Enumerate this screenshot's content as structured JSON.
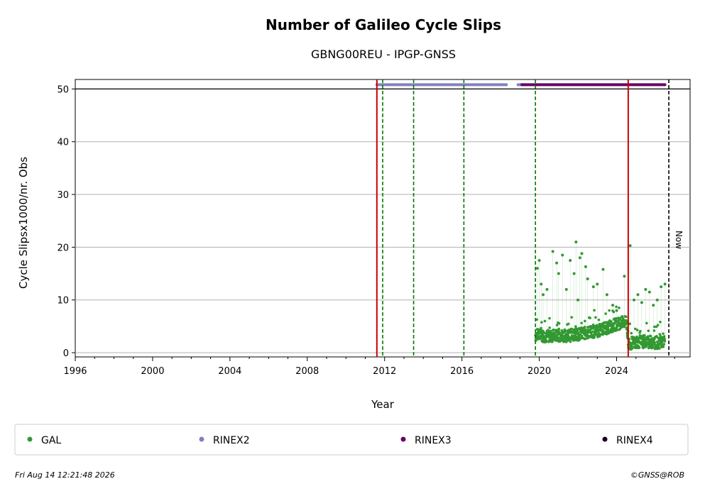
{
  "chart_data": {
    "type": "scatter",
    "title": "Number of Galileo Cycle Slips",
    "subtitle": "GBNG00REU - IPGP-GNSS",
    "xlabel": "Year",
    "ylabel": "Cycle Slipsx1000/nr. Obs",
    "xlim": [
      1996,
      2027.8
    ],
    "ylim": [
      -0.8,
      51.8
    ],
    "xticks": [
      1996,
      2000,
      2004,
      2008,
      2012,
      2016,
      2020,
      2024
    ],
    "yticks": [
      0,
      10,
      20,
      30,
      40,
      50
    ],
    "grid": "horizontal",
    "ceiling_line": 50,
    "events": {
      "red_solid": [
        2011.6,
        2024.6
      ],
      "green_dashed": [
        2011.9,
        2013.5,
        2016.1,
        2019.8
      ],
      "now_dashed": 2026.7,
      "now_label": "Now"
    },
    "file_availability": [
      {
        "name": "RINEX2",
        "color": "#8080c0",
        "y": 50.8,
        "ranges": [
          [
            2011.6,
            2018.3
          ],
          [
            2018.9,
            2019.2
          ]
        ]
      },
      {
        "name": "RINEX3",
        "color": "#660066",
        "y": 50.8,
        "ranges": [
          [
            2019.1,
            2026.5
          ]
        ]
      }
    ],
    "gal_trend": [
      [
        2019.8,
        3.2
      ],
      [
        2020.5,
        3.0
      ],
      [
        2021.0,
        3.2
      ],
      [
        2021.5,
        3.1
      ],
      [
        2022.0,
        3.4
      ],
      [
        2022.5,
        3.7
      ],
      [
        2023.0,
        4.0
      ],
      [
        2023.5,
        4.6
      ],
      [
        2024.0,
        5.3
      ],
      [
        2024.5,
        5.8
      ],
      [
        2024.62,
        1.6
      ],
      [
        2025.0,
        1.9
      ],
      [
        2025.5,
        2.0
      ],
      [
        2026.0,
        1.8
      ],
      [
        2026.5,
        1.9
      ]
    ],
    "gal_outliers": [
      [
        2019.9,
        16
      ],
      [
        2020.0,
        17.5
      ],
      [
        2020.1,
        13
      ],
      [
        2020.2,
        11
      ],
      [
        2020.4,
        12
      ],
      [
        2020.7,
        19.2
      ],
      [
        2020.9,
        17
      ],
      [
        2021.0,
        15
      ],
      [
        2021.2,
        18.5
      ],
      [
        2021.4,
        12
      ],
      [
        2021.6,
        17.5
      ],
      [
        2021.8,
        15
      ],
      [
        2021.9,
        21
      ],
      [
        2022.0,
        10
      ],
      [
        2022.1,
        18
      ],
      [
        2022.2,
        18.8
      ],
      [
        2022.4,
        16.3
      ],
      [
        2022.5,
        14
      ],
      [
        2022.8,
        12.5
      ],
      [
        2023.0,
        13
      ],
      [
        2023.3,
        15.8
      ],
      [
        2023.5,
        11
      ],
      [
        2023.8,
        9
      ],
      [
        2024.0,
        8
      ],
      [
        2024.4,
        14.5
      ],
      [
        2024.7,
        20.3
      ],
      [
        2024.9,
        10
      ],
      [
        2025.1,
        11
      ],
      [
        2025.3,
        9.5
      ],
      [
        2025.5,
        12
      ],
      [
        2025.7,
        11.5
      ],
      [
        2025.9,
        9
      ],
      [
        2026.1,
        10
      ],
      [
        2026.3,
        12.5
      ],
      [
        2026.5,
        13
      ]
    ],
    "legend": [
      {
        "label": "GAL",
        "color": "#339933"
      },
      {
        "label": "RINEX2",
        "color": "#8080c0"
      },
      {
        "label": "RINEX3",
        "color": "#660066"
      },
      {
        "label": "RINEX4",
        "color": "#1a0022"
      }
    ],
    "legend_position": "bottom",
    "footer_left": "Fri Aug 14 12:21:48 2026",
    "footer_right": "©GNSS@ROB"
  }
}
